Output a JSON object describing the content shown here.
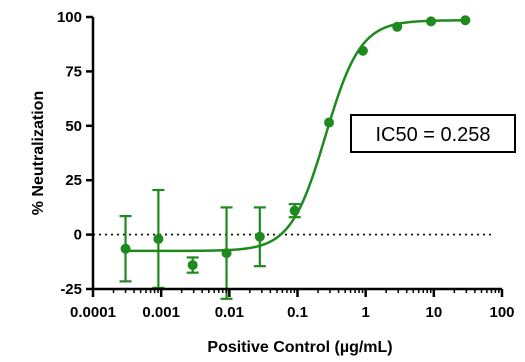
{
  "chart_data": {
    "type": "scatter",
    "xlabel": "Positive Control (µg/mL)",
    "ylabel": "% Neutralization",
    "x_scale": "log",
    "xlim": [
      0.0001,
      100
    ],
    "ylim": [
      -25,
      100
    ],
    "x_ticks": [
      0.0001,
      0.001,
      0.01,
      0.1,
      1,
      10,
      100
    ],
    "x_tick_labels": [
      "0.0001",
      "0.001",
      "0.01",
      "0.1",
      "1",
      "10",
      "100"
    ],
    "y_ticks": [
      -25,
      0,
      25,
      50,
      75,
      100
    ],
    "y_tick_labels": [
      "-25",
      "0",
      "25",
      "50",
      "75",
      "100"
    ],
    "grid": false,
    "reference_line": {
      "y": 0,
      "style": "dotted"
    },
    "series": [
      {
        "color": "#1e8a1e",
        "points": [
          {
            "x": 0.0003,
            "y": -6.5,
            "err": 15
          },
          {
            "x": 0.00091,
            "y": -2,
            "err": 22.5
          },
          {
            "x": 0.0029,
            "y": -14,
            "err": 3.5
          },
          {
            "x": 0.0091,
            "y": -8.5,
            "err": 21
          },
          {
            "x": 0.028,
            "y": -1,
            "err": 13.5
          },
          {
            "x": 0.091,
            "y": 11,
            "err": 3
          },
          {
            "x": 0.29,
            "y": 51.5,
            "err": 0
          },
          {
            "x": 0.91,
            "y": 84.5,
            "err": 0
          },
          {
            "x": 2.9,
            "y": 95.5,
            "err": 0
          },
          {
            "x": 9.1,
            "y": 98,
            "err": 0
          },
          {
            "x": 29,
            "y": 98.5,
            "err": 0
          }
        ],
        "fit": {
          "bottom": -7.5,
          "top": 98.5,
          "ic50": 0.258,
          "hill": 1.7
        }
      }
    ],
    "annotation": {
      "text": "IC50 = 0.258"
    }
  }
}
